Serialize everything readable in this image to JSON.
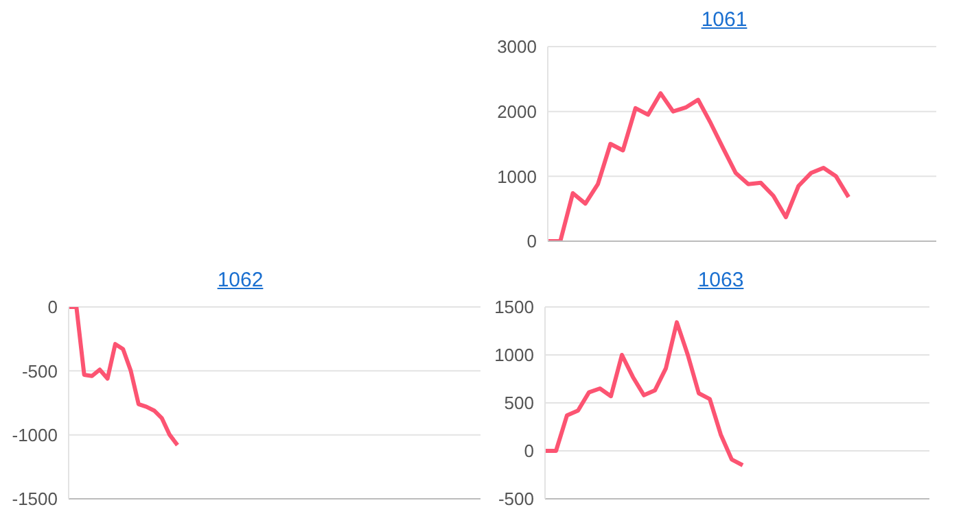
{
  "chart_data": [
    {
      "type": "line",
      "title": "1061",
      "categories": [
        null,
        null,
        null,
        null,
        null,
        null,
        null,
        null,
        null,
        null,
        null,
        null,
        null,
        null,
        null,
        null,
        null,
        null,
        null,
        null,
        null,
        null,
        null,
        null,
        null,
        null,
        null,
        null,
        null,
        null,
        null,
        null
      ],
      "series": [
        {
          "color": "#fc5472",
          "values": [
            0,
            0,
            740,
            580,
            880,
            1500,
            1400,
            2050,
            1950,
            2280,
            2000,
            2060,
            2180,
            1820,
            1430,
            1050,
            880,
            900,
            700,
            370,
            850,
            1050,
            1130,
            1000,
            680,
            null,
            null,
            null,
            null,
            null,
            null,
            null
          ]
        }
      ],
      "ylim": [
        0,
        3000
      ],
      "yticks": [
        0,
        1000,
        2000,
        3000
      ],
      "grid": "y",
      "tick_labels": "y"
    },
    {
      "type": "line",
      "title": "1062",
      "categories": [
        null,
        null,
        null,
        null,
        null,
        null,
        null,
        null,
        null,
        null,
        null,
        null,
        null,
        null,
        null,
        null,
        null,
        null,
        null,
        null,
        null,
        null,
        null,
        null,
        null,
        null,
        null,
        null,
        null,
        null,
        null,
        null,
        null,
        null,
        null,
        null,
        null,
        null,
        null,
        null,
        null,
        null,
        null,
        null,
        null,
        null,
        null,
        null,
        null,
        null,
        null,
        null,
        null,
        null
      ],
      "series": [
        {
          "color": "#fc5472",
          "values": [
            0,
            0,
            -530,
            -540,
            -490,
            -560,
            -290,
            -330,
            -500,
            -760,
            -780,
            -810,
            -870,
            -1000,
            -1080,
            null,
            null,
            null,
            null,
            null,
            null,
            null,
            null,
            null,
            null,
            null,
            null,
            null,
            null,
            null,
            null,
            null,
            null,
            null,
            null,
            null,
            null,
            null,
            null,
            null,
            null,
            null,
            null,
            null,
            null,
            null,
            null,
            null,
            null,
            null,
            null,
            null,
            null,
            null
          ]
        }
      ],
      "ylim": [
        -1500,
        0
      ],
      "yticks": [
        -1500,
        -1000,
        -500,
        0
      ],
      "grid": "y",
      "tick_labels": "y"
    },
    {
      "type": "line",
      "title": "1063",
      "categories": [
        null,
        null,
        null,
        null,
        null,
        null,
        null,
        null,
        null,
        null,
        null,
        null,
        null,
        null,
        null,
        null,
        null,
        null,
        null,
        null,
        null,
        null,
        null,
        null,
        null,
        null,
        null,
        null,
        null,
        null,
        null,
        null,
        null,
        null,
        null,
        null
      ],
      "series": [
        {
          "color": "#fc5472",
          "values": [
            0,
            0,
            370,
            420,
            610,
            650,
            570,
            1000,
            770,
            580,
            630,
            860,
            1340,
            1000,
            600,
            540,
            170,
            -90,
            -150,
            null,
            null,
            null,
            null,
            null,
            null,
            null,
            null,
            null,
            null,
            null,
            null,
            null,
            null,
            null,
            null,
            null
          ]
        }
      ],
      "ylim": [
        -500,
        1500
      ],
      "yticks": [
        -500,
        0,
        500,
        1000,
        1500
      ],
      "grid": "y",
      "tick_labels": "y"
    }
  ]
}
